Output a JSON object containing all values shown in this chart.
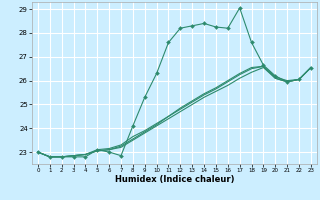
{
  "xlabel": "Humidex (Indice chaleur)",
  "bg_color": "#cceeff",
  "grid_color": "#ffffff",
  "line_color": "#2e8b6e",
  "xlim": [
    -0.5,
    23.5
  ],
  "ylim": [
    22.5,
    29.3
  ],
  "yticks": [
    23,
    24,
    25,
    26,
    27,
    28,
    29
  ],
  "xticks": [
    0,
    1,
    2,
    3,
    4,
    5,
    6,
    7,
    8,
    9,
    10,
    11,
    12,
    13,
    14,
    15,
    16,
    17,
    18,
    19,
    20,
    21,
    22,
    23
  ],
  "series": [
    {
      "x": [
        0,
        1,
        2,
        3,
        4,
        5,
        6,
        7,
        8,
        9,
        10,
        11,
        12,
        13,
        14,
        15,
        16,
        17,
        18,
        19,
        20,
        21,
        22,
        23
      ],
      "y": [
        23.0,
        22.8,
        22.8,
        22.8,
        22.8,
        23.1,
        23.0,
        22.85,
        24.1,
        25.3,
        26.3,
        27.6,
        28.2,
        28.3,
        28.4,
        28.25,
        28.2,
        29.05,
        27.6,
        26.65,
        26.2,
        25.95,
        26.05,
        26.55
      ],
      "marker": true
    },
    {
      "x": [
        0,
        1,
        2,
        3,
        4,
        5,
        6,
        7,
        8,
        9,
        10,
        11,
        12,
        13,
        14,
        15,
        16,
        17,
        18,
        19,
        20,
        21,
        22,
        23
      ],
      "y": [
        23.0,
        22.8,
        22.8,
        22.85,
        22.9,
        23.05,
        23.1,
        23.25,
        23.55,
        23.85,
        24.15,
        24.5,
        24.8,
        25.1,
        25.4,
        25.65,
        25.95,
        26.25,
        26.5,
        26.6,
        26.15,
        26.0,
        26.05,
        26.55
      ],
      "marker": false
    },
    {
      "x": [
        0,
        1,
        2,
        3,
        4,
        5,
        6,
        7,
        8,
        9,
        10,
        11,
        12,
        13,
        14,
        15,
        16,
        17,
        18,
        19,
        20,
        21,
        22,
        23
      ],
      "y": [
        23.0,
        22.8,
        22.8,
        22.85,
        22.9,
        23.05,
        23.1,
        23.2,
        23.5,
        23.8,
        24.1,
        24.4,
        24.7,
        25.0,
        25.3,
        25.55,
        25.8,
        26.1,
        26.35,
        26.55,
        26.1,
        25.95,
        26.05,
        26.55
      ],
      "marker": false
    },
    {
      "x": [
        0,
        1,
        2,
        3,
        4,
        5,
        6,
        7,
        8,
        9,
        10,
        11,
        12,
        13,
        14,
        15,
        16,
        17,
        18,
        19,
        20,
        21,
        22,
        23
      ],
      "y": [
        23.0,
        22.8,
        22.8,
        22.85,
        22.9,
        23.1,
        23.15,
        23.3,
        23.65,
        23.9,
        24.2,
        24.5,
        24.85,
        25.15,
        25.45,
        25.7,
        26.0,
        26.3,
        26.55,
        26.6,
        26.1,
        25.95,
        26.05,
        26.55
      ],
      "marker": false
    }
  ]
}
